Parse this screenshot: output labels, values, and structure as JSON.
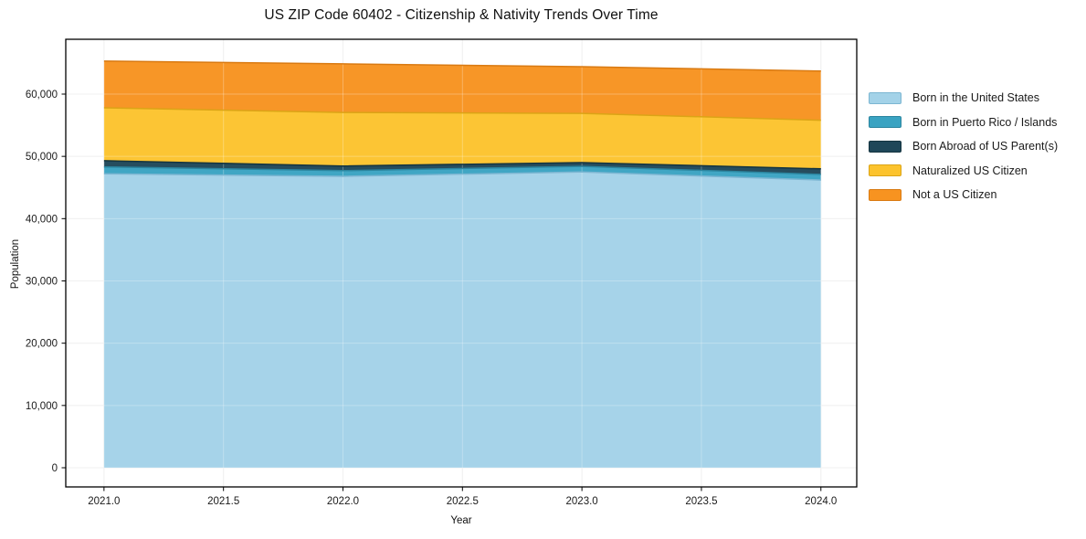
{
  "title": "US ZIP Code 60402 - Citizenship & Nativity Trends Over Time",
  "x_axis": {
    "label": "Year",
    "ticks": [
      {
        "value": 2021.0,
        "label": "2021.0"
      },
      {
        "value": 2021.5,
        "label": "2021.5"
      },
      {
        "value": 2022.0,
        "label": "2022.0"
      },
      {
        "value": 2022.5,
        "label": "2022.5"
      },
      {
        "value": 2023.0,
        "label": "2023.0"
      },
      {
        "value": 2023.5,
        "label": "2023.5"
      },
      {
        "value": 2024.0,
        "label": "2024.0"
      }
    ]
  },
  "y_axis": {
    "label": "Population",
    "ticks": [
      {
        "value": 0,
        "label": "0"
      },
      {
        "value": 10000,
        "label": "10,000"
      },
      {
        "value": 20000,
        "label": "20,000"
      },
      {
        "value": 30000,
        "label": "30,000"
      },
      {
        "value": 40000,
        "label": "40,000"
      },
      {
        "value": 50000,
        "label": "50,000"
      },
      {
        "value": 60000,
        "label": "60,000"
      }
    ]
  },
  "chart_data": {
    "type": "area",
    "stacked": true,
    "title": "US ZIP Code 60402 - Citizenship & Nativity Trends Over Time",
    "xlabel": "Year",
    "ylabel": "Population",
    "x": [
      2021,
      2022,
      2023,
      2024
    ],
    "series": [
      {
        "name": "Born in the United States",
        "color": "#a3d2e8",
        "edge_color": "#7cb6d2",
        "values": [
          47200,
          46800,
          47500,
          46200
        ]
      },
      {
        "name": "Born in Puerto Rico / Islands",
        "color": "#3aa3c2",
        "edge_color": "#2b859f",
        "values": [
          1100,
          900,
          900,
          900
        ]
      },
      {
        "name": "Born Abroad of US Parent(s)",
        "color": "#1f4759",
        "edge_color": "#143440",
        "values": [
          1000,
          750,
          600,
          900
        ]
      },
      {
        "name": "Naturalized US Citizen",
        "color": "#fcc32d",
        "edge_color": "#dba416",
        "values": [
          8500,
          8600,
          7900,
          7800
        ]
      },
      {
        "name": "Not a US Citizen",
        "color": "#f79320",
        "edge_color": "#d97a12",
        "values": [
          7500,
          7800,
          7500,
          7900
        ]
      }
    ],
    "totals_by_year": [
      65300,
      64850,
      64400,
      63700
    ],
    "xlim": [
      2020.84,
      2024.15
    ],
    "ylim": [
      -3080,
      68800
    ],
    "grid": true,
    "grid_color": "#ebebeb",
    "legend_position": "right",
    "axis_border_color": "#000000"
  }
}
